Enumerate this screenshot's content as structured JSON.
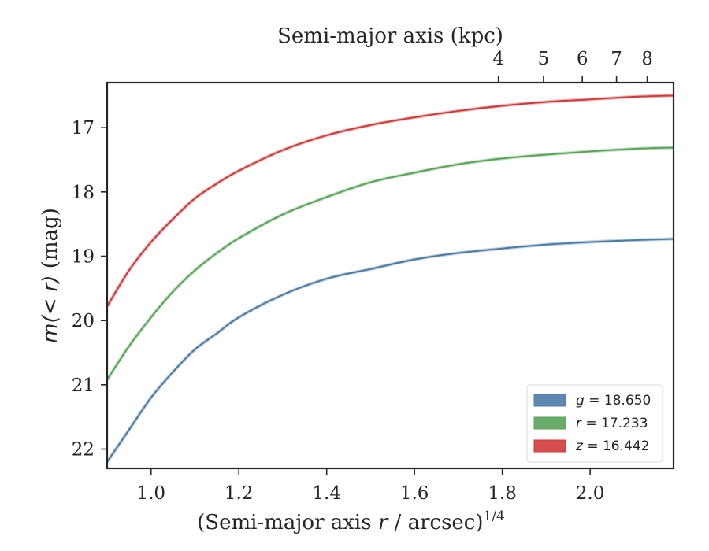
{
  "chart_data": {
    "type": "line",
    "xlabel": "(Semi-major axis r / arcsec)",
    "xlabel_prefix": "(Semi-major axis ",
    "xlabel_var": "r",
    "xlabel_suffix": " / arcsec)",
    "xlabel_sup": "1/4",
    "ylabel_prefix": "m(< r)",
    "ylabel_suffix": " (mag)",
    "top_xlabel": "Semi-major axis (kpc)",
    "xlim": [
      0.9,
      2.19
    ],
    "ylim": [
      22.3,
      16.3
    ],
    "y_inverted": true,
    "x_ticks": [
      1.0,
      1.2,
      1.4,
      1.6,
      1.8,
      2.0
    ],
    "x_tick_labels": [
      "1.0",
      "1.2",
      "1.4",
      "1.6",
      "1.8",
      "2.0"
    ],
    "y_ticks": [
      17,
      18,
      19,
      20,
      21,
      22
    ],
    "y_tick_labels": [
      "17",
      "18",
      "19",
      "20",
      "21",
      "22"
    ],
    "top_ticks_kpc": [
      4,
      5,
      6,
      7,
      8
    ],
    "top_tick_labels": [
      "4",
      "5",
      "6",
      "7",
      "8"
    ],
    "grid": false,
    "legend_position": "bottom-right",
    "series": [
      {
        "name": "g",
        "legend": "g = 18.650",
        "legend_var": "g",
        "legend_val": " = 18.650",
        "color": "#4c7ba6",
        "x": [
          0.9,
          0.95,
          1.0,
          1.05,
          1.1,
          1.15,
          1.2,
          1.3,
          1.4,
          1.5,
          1.6,
          1.7,
          1.8,
          1.9,
          2.0,
          2.1,
          2.19
        ],
        "y": [
          22.2,
          21.7,
          21.2,
          20.8,
          20.45,
          20.2,
          19.95,
          19.6,
          19.35,
          19.2,
          19.05,
          18.95,
          18.88,
          18.82,
          18.78,
          18.75,
          18.73
        ]
      },
      {
        "name": "r",
        "legend": "r = 17.233",
        "legend_var": "r",
        "legend_val": " = 17.233",
        "color": "#5aa45a",
        "x": [
          0.9,
          0.95,
          1.0,
          1.05,
          1.1,
          1.15,
          1.2,
          1.3,
          1.4,
          1.5,
          1.6,
          1.7,
          1.8,
          1.9,
          2.0,
          2.1,
          2.19
        ],
        "y": [
          20.92,
          20.4,
          19.95,
          19.55,
          19.22,
          18.95,
          18.72,
          18.35,
          18.08,
          17.85,
          17.7,
          17.57,
          17.48,
          17.42,
          17.37,
          17.33,
          17.31
        ]
      },
      {
        "name": "z",
        "legend": "z = 16.442",
        "legend_var": "z",
        "legend_val": " = 16.442",
        "color": "#d03a3a",
        "x": [
          0.9,
          0.95,
          1.0,
          1.05,
          1.1,
          1.15,
          1.2,
          1.3,
          1.4,
          1.5,
          1.6,
          1.7,
          1.8,
          1.9,
          2.0,
          2.1,
          2.19
        ],
        "y": [
          19.78,
          19.22,
          18.78,
          18.42,
          18.1,
          17.87,
          17.67,
          17.35,
          17.12,
          16.96,
          16.84,
          16.74,
          16.66,
          16.6,
          16.56,
          16.52,
          16.5
        ]
      }
    ]
  }
}
